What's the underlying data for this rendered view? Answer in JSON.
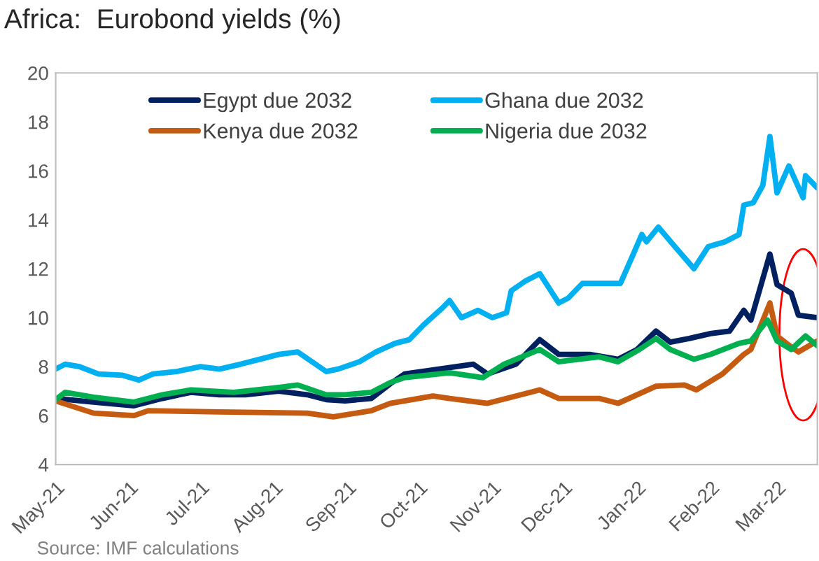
{
  "chart_data": {
    "type": "line",
    "title": "Africa:  Eurobond yields (%)",
    "annotations": [
      "Source: IMF calculations"
    ],
    "xlim": [
      "2021-05-01",
      "2022-03-18"
    ],
    "xticks": [
      {
        "value": "2021-05-01",
        "label": "May-21"
      },
      {
        "value": "2021-06-01",
        "label": "Jun-21"
      },
      {
        "value": "2021-07-01",
        "label": "Jul-21"
      },
      {
        "value": "2021-08-01",
        "label": "Aug-21"
      },
      {
        "value": "2021-09-01",
        "label": "Sep-21"
      },
      {
        "value": "2021-10-01",
        "label": "Oct-21"
      },
      {
        "value": "2021-11-01",
        "label": "Nov-21"
      },
      {
        "value": "2021-12-01",
        "label": "Dec-21"
      },
      {
        "value": "2022-01-01",
        "label": "Jan-22"
      },
      {
        "value": "2022-02-01",
        "label": "Feb-22"
      },
      {
        "value": "2022-03-01",
        "label": "Mar-22"
      }
    ],
    "ylim": [
      4,
      20
    ],
    "yticks": [
      4,
      6,
      8,
      10,
      12,
      14,
      16,
      18,
      20
    ],
    "grid": false,
    "legend": "top left",
    "line_style": "solid",
    "marker": "none",
    "series": [
      {
        "name": "Egypt due 2032",
        "color": "#002060",
        "x": [
          "2021-05-01",
          "2021-05-17",
          "2021-06-03",
          "2021-06-15",
          "2021-06-27",
          "2021-07-09",
          "2021-07-20",
          "2021-08-03",
          "2021-08-15",
          "2021-08-23",
          "2021-08-31",
          "2021-09-11",
          "2021-09-19",
          "2021-09-25",
          "2021-10-24",
          "2021-10-30",
          "2021-11-11",
          "2021-11-21",
          "2021-11-29",
          "2021-12-12",
          "2021-12-24",
          "2022-01-01",
          "2022-01-09",
          "2022-01-15",
          "2022-01-23",
          "2022-02-01",
          "2022-02-09",
          "2022-02-15",
          "2022-02-18",
          "2022-02-26",
          "2022-03-01",
          "2022-03-07",
          "2022-03-10",
          "2022-03-18"
        ],
        "values": [
          6.7,
          6.55,
          6.4,
          6.7,
          6.95,
          6.85,
          6.85,
          7.0,
          6.85,
          6.65,
          6.6,
          6.7,
          7.3,
          7.7,
          8.1,
          7.7,
          8.1,
          9.1,
          8.5,
          8.5,
          8.3,
          8.7,
          9.45,
          9.0,
          9.15,
          9.35,
          9.45,
          10.3,
          9.9,
          12.6,
          11.35,
          11.0,
          10.1,
          10.0
        ]
      },
      {
        "name": "Kenya due 2032",
        "color": "#c55a11",
        "x": [
          "2021-05-01",
          "2021-05-17",
          "2021-06-03",
          "2021-06-09",
          "2021-07-09",
          "2021-08-15",
          "2021-08-26",
          "2021-09-11",
          "2021-09-19",
          "2021-09-25",
          "2021-10-07",
          "2021-10-14",
          "2021-10-30",
          "2021-11-21",
          "2021-11-29",
          "2021-12-16",
          "2021-12-24",
          "2022-01-09",
          "2022-01-21",
          "2022-01-26",
          "2022-02-06",
          "2022-02-15",
          "2022-02-18",
          "2022-02-26",
          "2022-03-01",
          "2022-03-07",
          "2022-03-10",
          "2022-03-18"
        ],
        "values": [
          6.6,
          6.1,
          6.0,
          6.2,
          6.15,
          6.1,
          5.95,
          6.2,
          6.5,
          6.6,
          6.8,
          6.7,
          6.5,
          7.05,
          6.7,
          6.7,
          6.5,
          7.2,
          7.25,
          7.05,
          7.7,
          8.5,
          8.7,
          10.6,
          9.25,
          8.8,
          8.6,
          9.05
        ]
      },
      {
        "name": "Ghana due 2032",
        "color": "#00b0f0",
        "x": [
          "2021-05-01",
          "2021-05-05",
          "2021-05-11",
          "2021-05-19",
          "2021-05-29",
          "2021-06-05",
          "2021-06-11",
          "2021-06-21",
          "2021-07-01",
          "2021-07-09",
          "2021-07-18",
          "2021-07-26",
          "2021-08-03",
          "2021-08-11",
          "2021-08-17",
          "2021-08-23",
          "2021-08-28",
          "2021-09-06",
          "2021-09-13",
          "2021-09-21",
          "2021-09-27",
          "2021-10-03",
          "2021-10-11",
          "2021-10-14",
          "2021-10-19",
          "2021-10-26",
          "2021-11-01",
          "2021-11-07",
          "2021-11-09",
          "2021-11-15",
          "2021-11-21",
          "2021-11-23",
          "2021-11-29",
          "2021-12-03",
          "2021-12-09",
          "2021-12-18",
          "2021-12-25",
          "2021-12-30",
          "2022-01-03",
          "2022-01-05",
          "2022-01-10",
          "2022-01-17",
          "2022-01-25",
          "2022-01-31",
          "2022-02-07",
          "2022-02-13",
          "2022-02-15",
          "2022-02-19",
          "2022-02-23",
          "2022-02-26",
          "2022-03-01",
          "2022-03-06",
          "2022-03-12",
          "2022-03-13",
          "2022-03-18"
        ],
        "values": [
          7.9,
          8.1,
          8.0,
          7.7,
          7.65,
          7.45,
          7.7,
          7.8,
          8.0,
          7.9,
          8.1,
          8.3,
          8.5,
          8.6,
          8.2,
          7.8,
          7.9,
          8.2,
          8.6,
          8.95,
          9.1,
          9.7,
          10.4,
          10.7,
          10.0,
          10.3,
          10.0,
          10.2,
          11.1,
          11.5,
          11.8,
          11.5,
          10.6,
          10.8,
          11.4,
          11.4,
          11.4,
          12.5,
          13.4,
          13.1,
          13.7,
          12.9,
          12.0,
          12.9,
          13.1,
          13.4,
          14.6,
          14.7,
          15.4,
          17.4,
          15.1,
          16.2,
          14.9,
          15.8,
          15.3
        ]
      },
      {
        "name": "Nigeria due 2032",
        "color": "#00b050",
        "x": [
          "2021-05-01",
          "2021-05-05",
          "2021-05-17",
          "2021-06-03",
          "2021-06-15",
          "2021-06-27",
          "2021-07-15",
          "2021-08-03",
          "2021-08-11",
          "2021-08-23",
          "2021-08-31",
          "2021-09-11",
          "2021-09-19",
          "2021-09-25",
          "2021-10-14",
          "2021-10-28",
          "2021-11-06",
          "2021-11-21",
          "2021-11-29",
          "2021-12-16",
          "2021-12-24",
          "2022-01-02",
          "2022-01-09",
          "2022-01-15",
          "2022-01-25",
          "2022-02-01",
          "2022-02-13",
          "2022-02-18",
          "2022-02-25",
          "2022-03-01",
          "2022-03-07",
          "2022-03-13",
          "2022-03-18"
        ],
        "values": [
          6.65,
          6.95,
          6.75,
          6.55,
          6.85,
          7.05,
          6.95,
          7.15,
          7.25,
          6.85,
          6.85,
          6.95,
          7.35,
          7.55,
          7.75,
          7.55,
          8.1,
          8.7,
          8.2,
          8.4,
          8.2,
          8.7,
          9.15,
          8.7,
          8.3,
          8.5,
          8.95,
          9.05,
          9.9,
          9.05,
          8.7,
          9.25,
          8.85
        ]
      }
    ]
  }
}
